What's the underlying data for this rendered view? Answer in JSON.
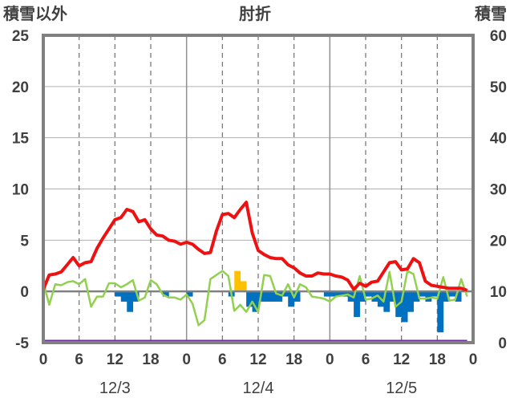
{
  "chart_data": {
    "type": "line",
    "title": "",
    "left_label": "積雪以外",
    "center_label": "肘折",
    "right_label": "積雪",
    "left_ylim": [
      -5,
      25
    ],
    "right_ylim": [
      0,
      60
    ],
    "left_ticks": [
      "25",
      "20",
      "15",
      "10",
      "5",
      "0",
      "-5"
    ],
    "right_ticks": [
      "60",
      "50",
      "40",
      "30",
      "20",
      "10",
      "0"
    ],
    "x_ticks": [
      "0",
      "6",
      "12",
      "18",
      "0",
      "6",
      "12",
      "18",
      "0",
      "6",
      "12",
      "18",
      "0"
    ],
    "dates": [
      "12/3",
      "12/4",
      "12/5"
    ],
    "colors": {
      "temp": "#ee1111",
      "wind": "#92d050",
      "snowfall_pos": "#ffc000",
      "snowfall_neg": "#0070c0",
      "depth": "#7030a0",
      "zero": "#808080",
      "frame": "#808080"
    },
    "hours": 72,
    "temperature": [
      0.2,
      1.6,
      1.7,
      1.9,
      2.6,
      3.3,
      2.5,
      2.8,
      2.9,
      4.2,
      5.2,
      6.1,
      7.0,
      7.2,
      8.0,
      7.8,
      6.8,
      7.0,
      6.1,
      5.5,
      5.4,
      5.0,
      4.9,
      4.6,
      4.8,
      4.6,
      4.1,
      3.7,
      3.8,
      5.9,
      7.5,
      7.6,
      7.2,
      8.0,
      8.7,
      5.7,
      4.0,
      3.6,
      3.3,
      3.2,
      3.2,
      2.6,
      2.3,
      1.8,
      1.5,
      1.5,
      1.8,
      1.7,
      1.7,
      1.5,
      1.4,
      1.1,
      0.2,
      0.8,
      0.5,
      0.9,
      1.0,
      1.9,
      2.8,
      2.9,
      2.1,
      2.2,
      3.2,
      2.8,
      1.0,
      0.6,
      0.5,
      0.4,
      0.3,
      0.3,
      0.3,
      0.1
    ],
    "wind": [
      0.9,
      -1.3,
      0.7,
      0.6,
      0.9,
      1.0,
      0.7,
      1.2,
      -1.5,
      -0.5,
      -0.5,
      0.8,
      0.8,
      0.4,
      0.7,
      1.1,
      -0.9,
      -0.6,
      1.1,
      0.7,
      -0.3,
      -0.6,
      -0.6,
      -0.8,
      -0.3,
      -1.2,
      -3.3,
      -2.8,
      1.2,
      1.6,
      2.0,
      1.5,
      -1.9,
      -1.3,
      -2.0,
      -1.0,
      -2.0,
      1.6,
      1.5,
      -0.2,
      -0.4,
      0.7,
      -0.6,
      0.7,
      0.4,
      -0.5,
      -0.6,
      -0.7,
      -1.0,
      -0.5,
      -0.4,
      -0.3,
      -0.6,
      1.5,
      -0.8,
      -0.7,
      -0.4,
      -1.0,
      1.9,
      -1.5,
      -1.0,
      2.0,
      1.7,
      -0.7,
      -0.7,
      -0.6,
      -0.7,
      1.4,
      -0.9,
      -0.8,
      1.2,
      -0.5
    ],
    "snowfall": [
      0,
      0,
      0,
      0,
      0,
      0,
      0,
      0,
      0,
      0,
      0,
      0,
      -0.5,
      -1.0,
      -2.0,
      -1.0,
      0,
      0,
      0,
      0,
      -0.5,
      0,
      0,
      0,
      -0.5,
      0,
      0,
      0,
      0,
      0,
      0,
      -0.5,
      2.0,
      1.0,
      -1.5,
      -2.0,
      -1.0,
      -1.0,
      -1.0,
      -1.0,
      -0.5,
      -1.5,
      -1.0,
      0,
      0,
      0,
      0,
      -0.5,
      -0.5,
      -0.5,
      -0.5,
      -1.0,
      -2.5,
      -1.0,
      -0.5,
      -1.0,
      -1.5,
      -2.0,
      -1.0,
      -2.5,
      -3.0,
      -2.0,
      -1.0,
      -0.5,
      -1.0,
      -0.5,
      -4.0,
      -1.0,
      -0.5,
      -1.0,
      0,
      0
    ],
    "snow_depth": [
      0,
      0,
      0,
      0,
      0,
      0,
      0,
      0,
      0,
      0,
      0,
      0,
      0,
      0,
      0,
      0,
      0,
      0,
      0,
      0,
      0,
      0,
      0,
      0,
      0,
      0,
      0,
      0,
      0,
      0,
      0,
      0,
      0,
      0,
      0,
      0,
      0,
      0,
      0,
      0,
      0,
      0,
      0,
      0,
      0,
      0,
      0,
      0,
      0,
      0,
      0,
      0,
      0,
      0,
      0,
      0,
      0,
      0,
      0,
      0,
      0,
      0,
      0,
      0,
      0,
      0,
      0,
      0,
      0,
      0,
      0,
      0
    ]
  }
}
